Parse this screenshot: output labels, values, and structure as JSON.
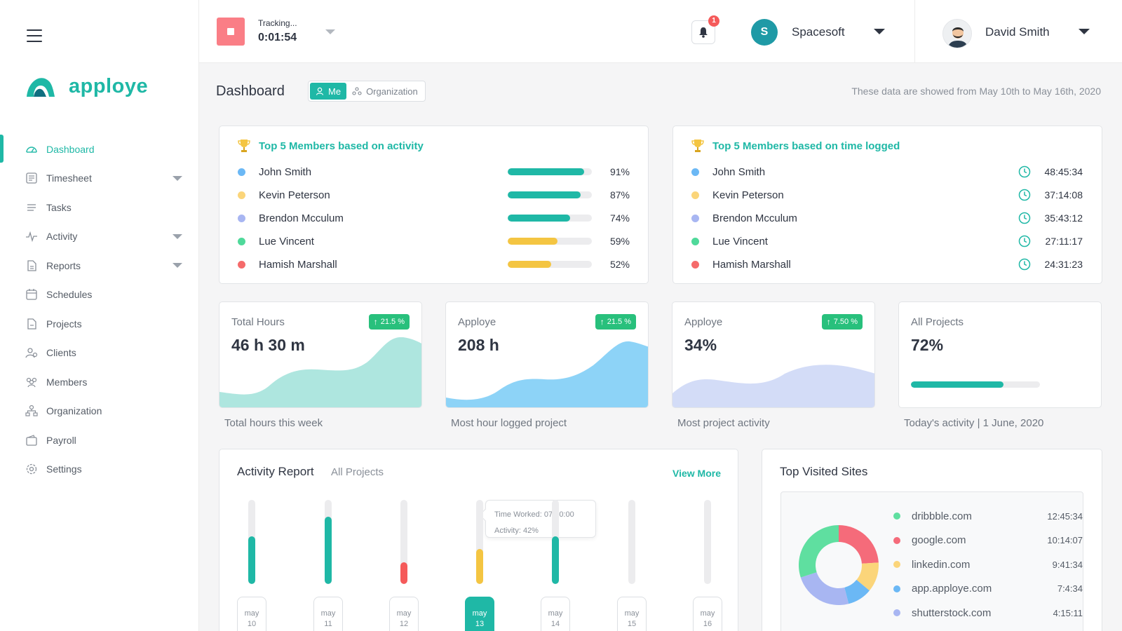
{
  "brand": {
    "name": "apploye"
  },
  "sidebar": {
    "items": [
      {
        "label": "Dashboard",
        "icon": "dashboard-icon",
        "active": true,
        "caret": false
      },
      {
        "label": "Timesheet",
        "icon": "timesheet-icon",
        "active": false,
        "caret": true
      },
      {
        "label": "Tasks",
        "icon": "tasks-icon",
        "active": false,
        "caret": false
      },
      {
        "label": "Activity",
        "icon": "activity-icon",
        "active": false,
        "caret": true
      },
      {
        "label": "Reports",
        "icon": "reports-icon",
        "active": false,
        "caret": true
      },
      {
        "label": "Schedules",
        "icon": "schedules-icon",
        "active": false,
        "caret": false
      },
      {
        "label": "Projects",
        "icon": "projects-icon",
        "active": false,
        "caret": false
      },
      {
        "label": "Clients",
        "icon": "clients-icon",
        "active": false,
        "caret": false
      },
      {
        "label": "Members",
        "icon": "members-icon",
        "active": false,
        "caret": false
      },
      {
        "label": "Organization",
        "icon": "organization-icon",
        "active": false,
        "caret": false
      },
      {
        "label": "Payroll",
        "icon": "payroll-icon",
        "active": false,
        "caret": false
      },
      {
        "label": "Settings",
        "icon": "settings-icon",
        "active": false,
        "caret": false
      }
    ]
  },
  "topbar": {
    "tracking_label": "Tracking...",
    "tracking_time": "0:01:54",
    "notifications_count": "1",
    "org_initial": "S",
    "org_name": "Spacesoft",
    "user_name": "David Smith"
  },
  "header": {
    "title": "Dashboard",
    "toggle_me": "Me",
    "toggle_org": "Organization",
    "date_range": "These data are showed from May 10th to May 16th, 2020"
  },
  "activity_card": {
    "title": "Top 5 Members based on activity",
    "members": [
      {
        "name": "John Smith",
        "dot": "#6bb8f5",
        "percent_label": "91%",
        "value": 0.91,
        "bar": "#1fb8a6"
      },
      {
        "name": "Kevin Peterson",
        "dot": "#fbd57a",
        "percent_label": "87%",
        "value": 0.87,
        "bar": "#1fb8a6"
      },
      {
        "name": "Brendon Mcculum",
        "dot": "#a8b6f2",
        "percent_label": "74%",
        "value": 0.74,
        "bar": "#1fb8a6"
      },
      {
        "name": "Lue Vincent",
        "dot": "#4fd99a",
        "percent_label": "59%",
        "value": 0.59,
        "bar": "#f4c542"
      },
      {
        "name": "Hamish Marshall",
        "dot": "#f56b6b",
        "percent_label": "52%",
        "value": 0.52,
        "bar": "#f4c542"
      }
    ]
  },
  "time_card": {
    "title": "Top 5 Members based on time logged",
    "members": [
      {
        "name": "John Smith",
        "dot": "#6bb8f5",
        "time": "48:45:34"
      },
      {
        "name": "Kevin Peterson",
        "dot": "#fbd57a",
        "time": "37:14:08"
      },
      {
        "name": "Brendon Mcculum",
        "dot": "#a8b6f2",
        "time": "35:43:12"
      },
      {
        "name": "Lue Vincent",
        "dot": "#4fd99a",
        "time": "27:11:17"
      },
      {
        "name": "Hamish Marshall",
        "dot": "#f56b6b",
        "time": "24:31:23"
      }
    ]
  },
  "stats": [
    {
      "label": "Total Hours",
      "value": "46 h 30 m",
      "badge": "21.5 %",
      "caption": "Total hours this week",
      "wave_color": "#aee6df"
    },
    {
      "label": "Apploye",
      "value": "208 h",
      "badge": "21.5 %",
      "caption": "Most hour logged project",
      "wave_color": "#8dd3f7"
    },
    {
      "label": "Apploye",
      "value": "34%",
      "badge": "7.50 %",
      "caption": "Most project activity",
      "wave_color": "#d3dcf7"
    },
    {
      "label": "All Projects",
      "value": "72%",
      "progress": 0.72,
      "caption": "Today's activity | 1 June, 2020"
    }
  ],
  "activity_report": {
    "title": "Activity Report",
    "subtitle": "All Projects",
    "view_more": "View More",
    "tooltip_time": "Time Worked: 07:20:00",
    "tooltip_activity": "Activity: 42%",
    "days": [
      {
        "month": "may",
        "day": "10",
        "value": 0.57,
        "color": "#1fb8a6",
        "selected": false
      },
      {
        "month": "may",
        "day": "11",
        "value": 0.8,
        "color": "#1fb8a6",
        "selected": false
      },
      {
        "month": "may",
        "day": "12",
        "value": 0.26,
        "color": "#f55a5a",
        "selected": false
      },
      {
        "month": "may",
        "day": "13",
        "value": 0.42,
        "color": "#f4c542",
        "selected": true
      },
      {
        "month": "may",
        "day": "14",
        "value": 0.57,
        "color": "#1fb8a6",
        "selected": false
      },
      {
        "month": "may",
        "day": "15",
        "value": 0,
        "color": "#1fb8a6",
        "selected": false
      },
      {
        "month": "may",
        "day": "16",
        "value": 0,
        "color": "#1fb8a6",
        "selected": false
      }
    ]
  },
  "top_sites": {
    "title": "Top Visited Sites",
    "sites": [
      {
        "name": "dribbble.com",
        "time": "12:45:34",
        "color": "#5fdfa0",
        "share": 0.3
      },
      {
        "name": "google.com",
        "time": "10:14:07",
        "color": "#f56b7a",
        "share": 0.24
      },
      {
        "name": "linkedin.com",
        "time": "9:41:34",
        "color": "#fbd57a",
        "share": 0.12
      },
      {
        "name": "app.apploye.com",
        "time": "7:4:34",
        "color": "#6bb8f5",
        "share": 0.1
      },
      {
        "name": "shutterstock.com",
        "time": "4:15:11",
        "color": "#a8b6f2",
        "share": 0.24
      }
    ]
  }
}
